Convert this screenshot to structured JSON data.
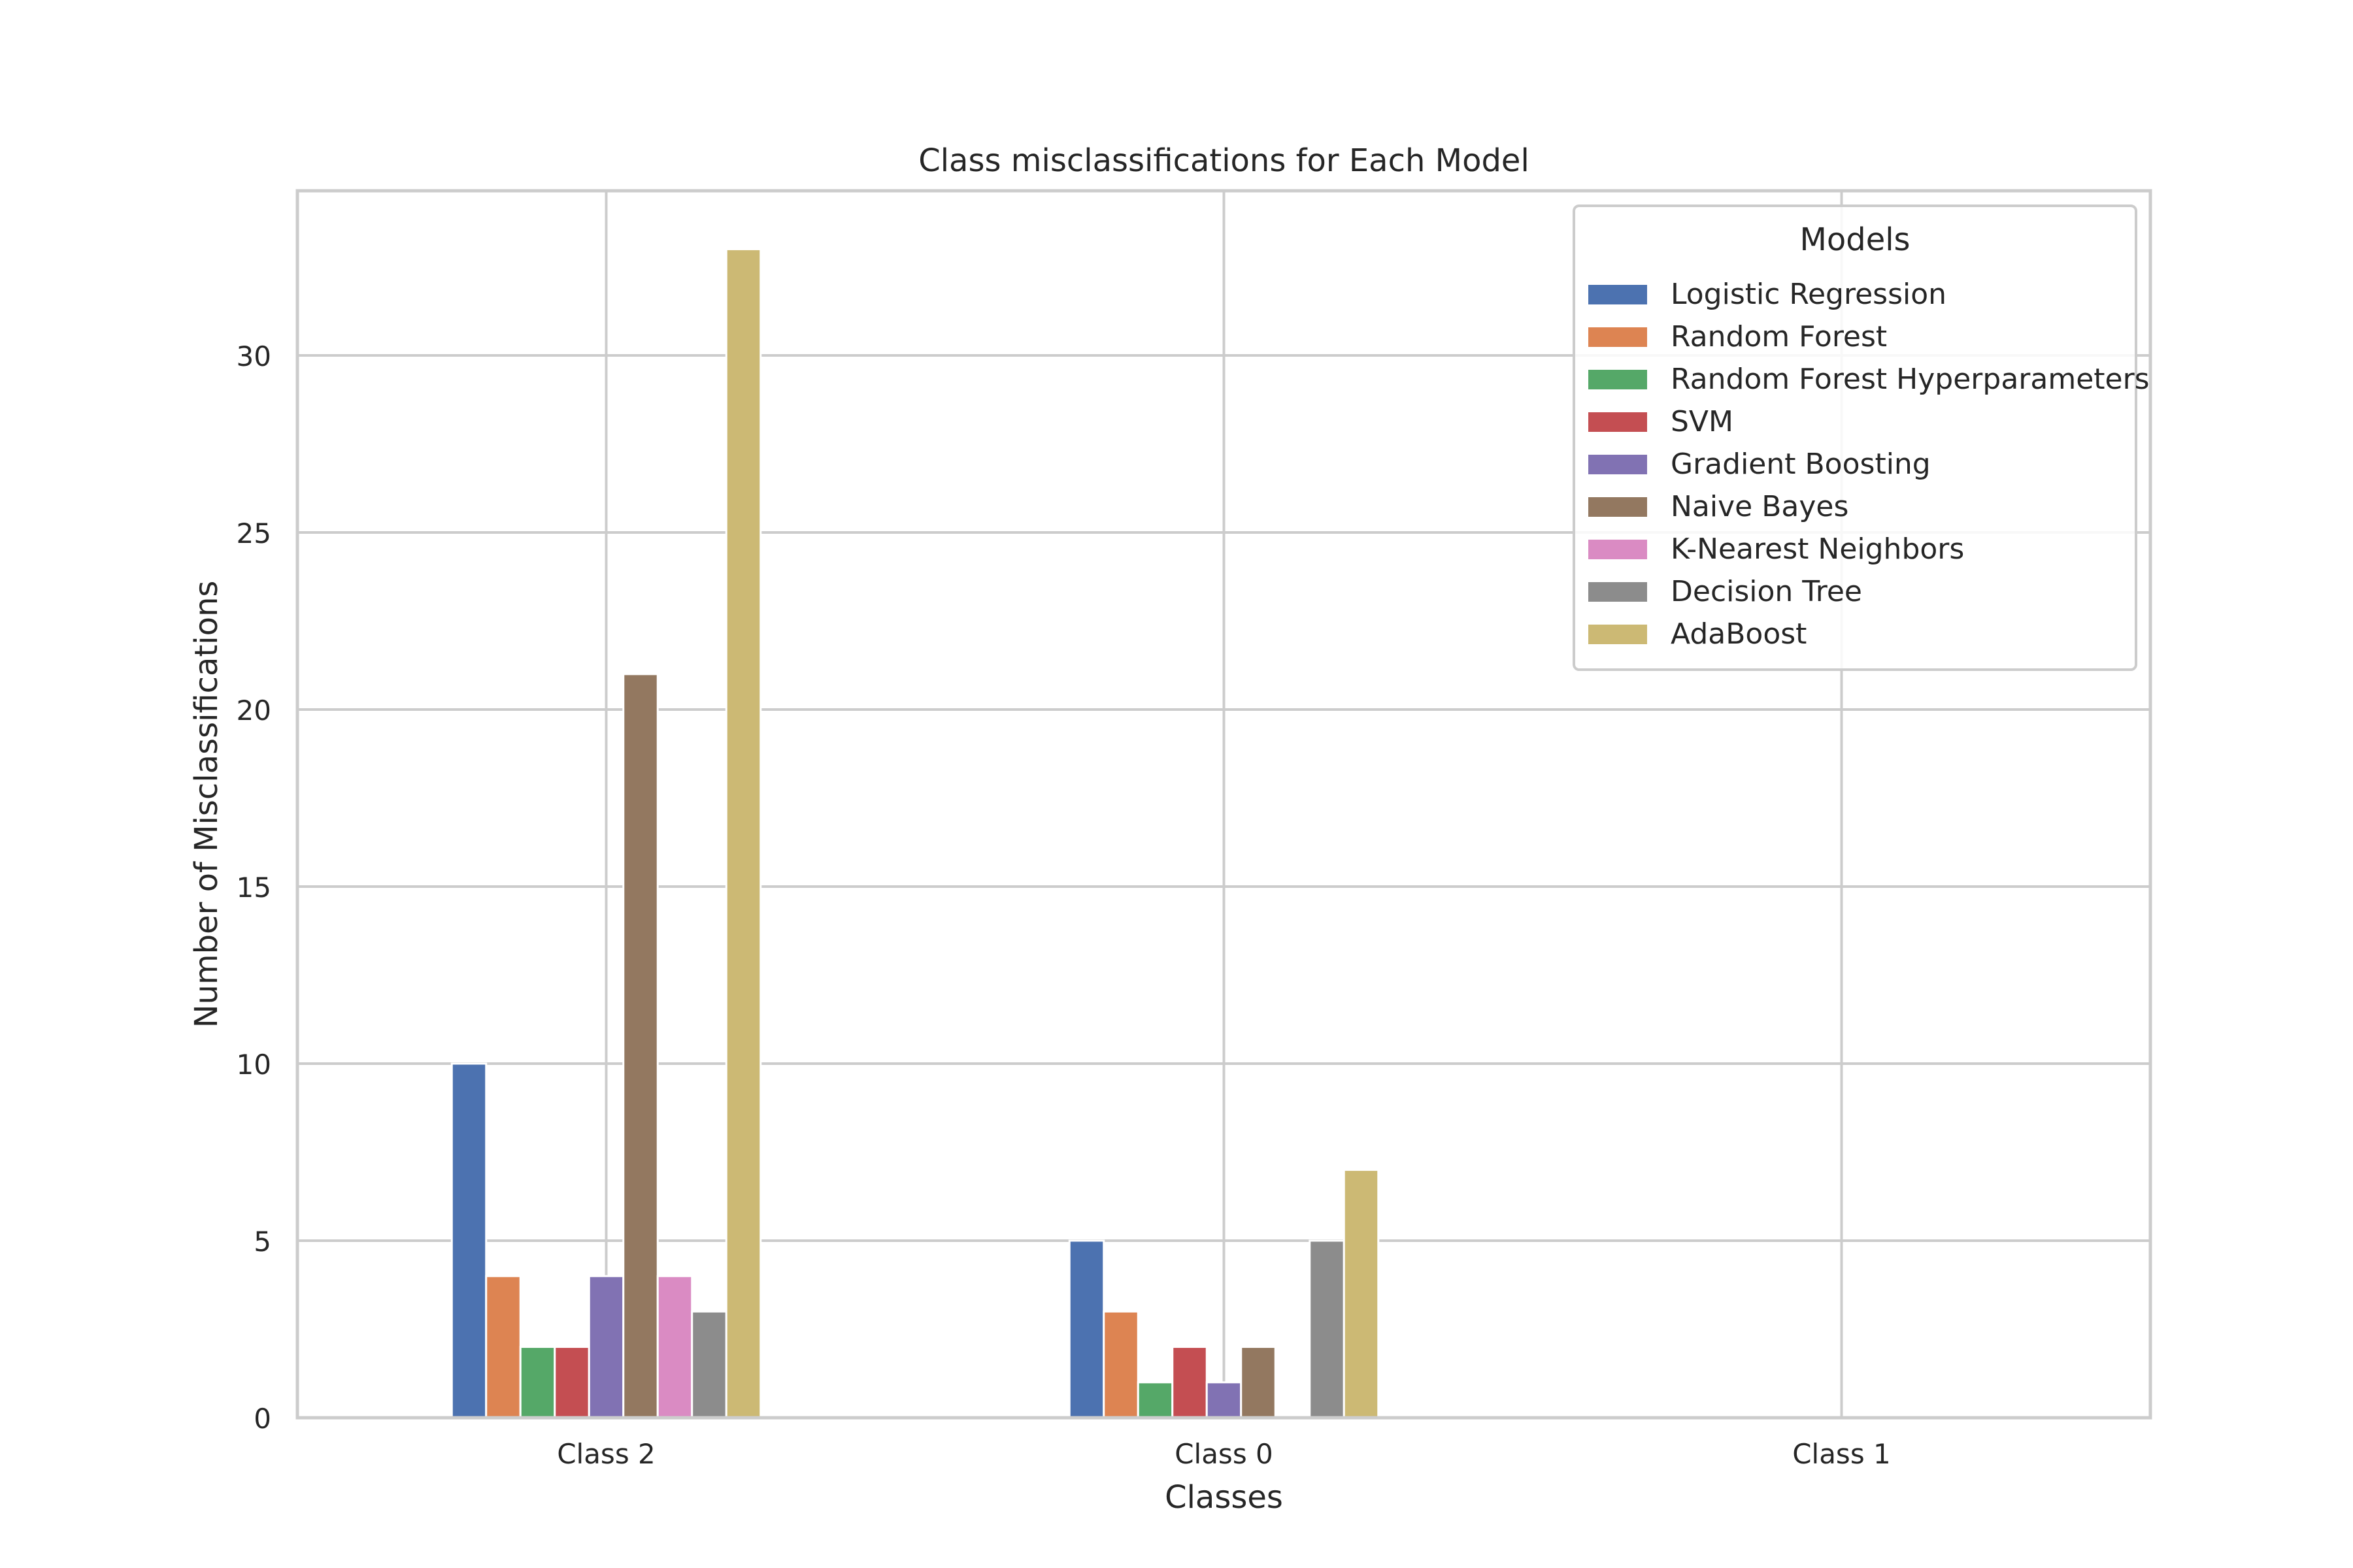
{
  "chart_data": {
    "type": "bar",
    "title": "Class misclassifications  for Each Model",
    "xlabel": "Classes",
    "ylabel": "Number of Misclassifications",
    "categories": [
      "Class 2",
      "Class 0",
      "Class 1"
    ],
    "ylim": [
      0,
      34.65
    ],
    "yticks": [
      0,
      5,
      10,
      15,
      20,
      25,
      30
    ],
    "grid": true,
    "legend": {
      "title": "Models",
      "placement": "top-right"
    },
    "series": [
      {
        "name": "Logistic Regression",
        "color": "#4c72b0",
        "values": [
          10,
          5,
          0
        ]
      },
      {
        "name": "Random Forest",
        "color": "#dd8452",
        "values": [
          4,
          3,
          0
        ]
      },
      {
        "name": "Random Forest Hyperparameters",
        "color": "#55a868",
        "values": [
          2,
          1,
          0
        ]
      },
      {
        "name": "SVM",
        "color": "#c44e52",
        "values": [
          2,
          2,
          0
        ]
      },
      {
        "name": "Gradient Boosting",
        "color": "#8172b3",
        "values": [
          4,
          1,
          0
        ]
      },
      {
        "name": "Naive Bayes",
        "color": "#937860",
        "values": [
          21,
          2,
          0
        ]
      },
      {
        "name": "K-Nearest Neighbors",
        "color": "#da8bc3",
        "values": [
          4,
          0,
          0
        ]
      },
      {
        "name": "Decision Tree",
        "color": "#8c8c8c",
        "values": [
          3,
          5,
          0
        ]
      },
      {
        "name": "AdaBoost",
        "color": "#ccb974",
        "values": [
          33,
          7,
          0
        ]
      }
    ]
  }
}
